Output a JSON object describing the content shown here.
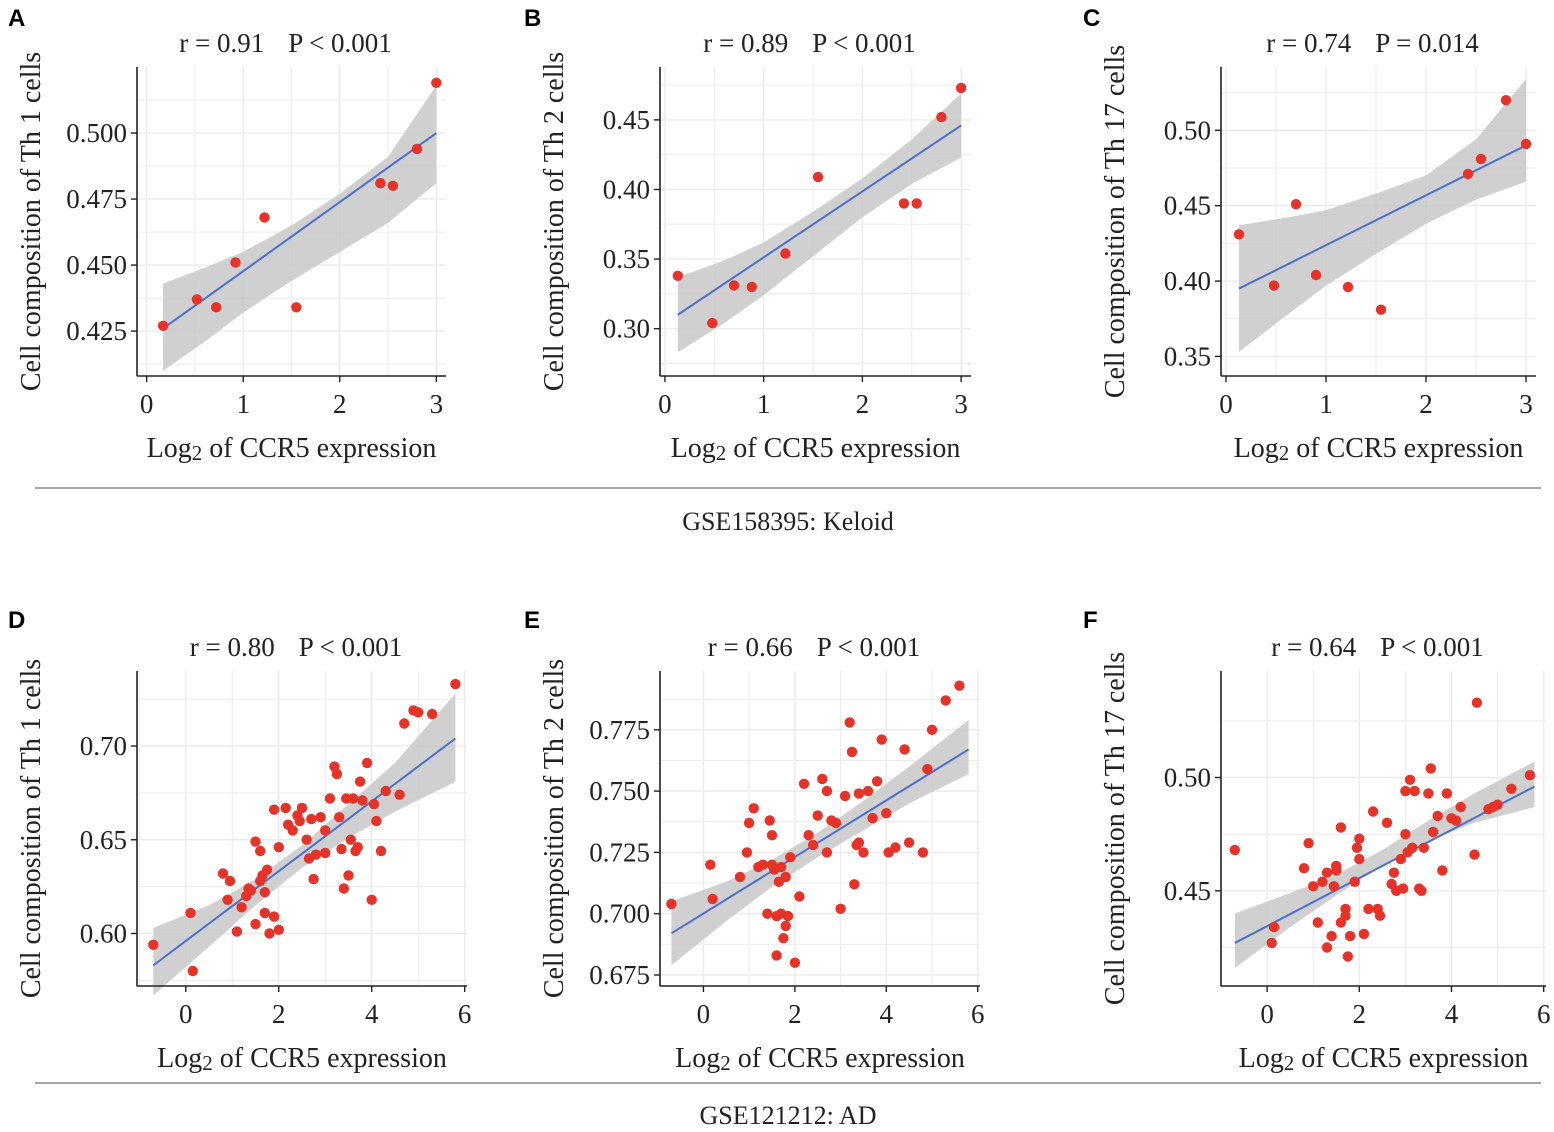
{
  "chart_data": [
    {
      "type": "scatter",
      "panel": "A",
      "annotation": {
        "r": "r = 0.91",
        "p": "P < 0.001"
      },
      "xlabel": "Log2 of CCR5 expression",
      "ylabel": "Cell composition of  Th 1 cells",
      "xlim": [
        -0.1,
        3.1
      ],
      "ylim": [
        0.408,
        0.525
      ],
      "xticks": [
        0,
        1,
        2,
        3
      ],
      "xtick_labels": [
        "0",
        "1",
        "2",
        "3"
      ],
      "yticks": [
        0.425,
        0.45,
        0.475,
        0.5
      ],
      "ytick_labels": [
        "0.425",
        "0.450",
        "0.475",
        "0.500"
      ],
      "points": {
        "x": [
          0.17,
          0.52,
          0.72,
          0.92,
          1.22,
          1.55,
          2.42,
          2.55,
          2.8,
          3.0
        ],
        "y": [
          0.427,
          0.437,
          0.434,
          0.451,
          0.468,
          0.434,
          0.481,
          0.48,
          0.494,
          0.519
        ]
      },
      "fit": {
        "x": [
          0.17,
          3.0
        ],
        "y": [
          0.426,
          0.5
        ]
      },
      "band": {
        "x": [
          0.17,
          0.6,
          1.0,
          1.5,
          2.0,
          2.5,
          3.0
        ],
        "lower": [
          0.41,
          0.421,
          0.432,
          0.444,
          0.455,
          0.466,
          0.481
        ],
        "upper": [
          0.443,
          0.449,
          0.455,
          0.465,
          0.477,
          0.491,
          0.518
        ]
      }
    },
    {
      "type": "scatter",
      "panel": "B",
      "annotation": {
        "r": "r = 0.89",
        "p": "P < 0.001"
      },
      "xlabel": "Log2 of CCR5 expression",
      "ylabel": "Cell composition of Th 2 cells",
      "xlim": [
        -0.05,
        3.1
      ],
      "ylim": [
        0.266,
        0.488
      ],
      "xticks": [
        0,
        1,
        2,
        3
      ],
      "xtick_labels": [
        "0",
        "1",
        "2",
        "3"
      ],
      "yticks": [
        0.3,
        0.35,
        0.4,
        0.45
      ],
      "ytick_labels": [
        "0.30",
        "0.35",
        "0.40",
        "0.45"
      ],
      "points": {
        "x": [
          0.13,
          0.48,
          0.7,
          0.88,
          1.22,
          1.55,
          2.42,
          2.55,
          2.8,
          3.0
        ],
        "y": [
          0.338,
          0.304,
          0.331,
          0.33,
          0.354,
          0.409,
          0.39,
          0.39,
          0.452,
          0.473
        ]
      },
      "fit": {
        "x": [
          0.13,
          3.0
        ],
        "y": [
          0.31,
          0.446
        ]
      },
      "band": {
        "x": [
          0.13,
          0.6,
          1.0,
          1.5,
          2.0,
          2.5,
          3.0
        ],
        "lower": [
          0.283,
          0.304,
          0.324,
          0.352,
          0.38,
          0.404,
          0.423
        ],
        "upper": [
          0.337,
          0.349,
          0.362,
          0.384,
          0.408,
          0.436,
          0.469
        ]
      }
    },
    {
      "type": "scatter",
      "panel": "C",
      "annotation": {
        "r": "r = 0.74",
        "p": "P = 0.014"
      },
      "xlabel": "Log2 of CCR5 expression",
      "ylabel": "Cell composition of  Th 17 cells",
      "xlim": [
        -0.05,
        3.1
      ],
      "ylim": [
        0.337,
        0.542
      ],
      "xticks": [
        0,
        1,
        2,
        3
      ],
      "xtick_labels": [
        "0",
        "1",
        "2",
        "3"
      ],
      "yticks": [
        0.35,
        0.4,
        0.45,
        0.5
      ],
      "ytick_labels": [
        "0.35",
        "0.40",
        "0.45",
        "0.50"
      ],
      "points": {
        "x": [
          0.13,
          0.48,
          0.7,
          0.9,
          1.22,
          1.55,
          2.42,
          2.55,
          2.8,
          3.0
        ],
        "y": [
          0.431,
          0.397,
          0.451,
          0.404,
          0.396,
          0.381,
          0.471,
          0.481,
          0.52,
          0.491
        ]
      },
      "fit": {
        "x": [
          0.13,
          3.0
        ],
        "y": [
          0.395,
          0.49
        ]
      },
      "band": {
        "x": [
          0.13,
          0.6,
          1.0,
          1.5,
          2.0,
          2.5,
          3.0
        ],
        "lower": [
          0.353,
          0.377,
          0.397,
          0.418,
          0.438,
          0.454,
          0.466
        ],
        "upper": [
          0.437,
          0.442,
          0.447,
          0.458,
          0.47,
          0.494,
          0.534
        ]
      }
    },
    {
      "type": "scatter",
      "panel": "D",
      "annotation": {
        "r": "r = 0.80",
        "p": "P < 0.001"
      },
      "xlabel": "Log2 of CCR5 expression",
      "ylabel": "Cell composition of  Th 1 cells",
      "xlim": [
        -1.05,
        6.05
      ],
      "ylim": [
        0.572,
        0.74
      ],
      "xticks": [
        0,
        2,
        4,
        6
      ],
      "xtick_labels": [
        "0",
        "2",
        "4",
        "6"
      ],
      "yticks": [
        0.6,
        0.65,
        0.7
      ],
      "ytick_labels": [
        "0.60",
        "0.65",
        "0.70"
      ],
      "points": {
        "x": [
          -0.7,
          0.1,
          0.15,
          0.8,
          0.9,
          0.95,
          1.1,
          1.2,
          1.35,
          1.4,
          1.5,
          1.5,
          1.6,
          1.6,
          1.65,
          1.7,
          1.7,
          1.75,
          1.8,
          1.9,
          1.9,
          2.0,
          2.0,
          2.15,
          2.3,
          2.4,
          2.45,
          2.5,
          2.6,
          2.65,
          2.7,
          2.75,
          2.8,
          2.9,
          3.0,
          3.1,
          3.2,
          3.25,
          3.3,
          3.35,
          3.4,
          3.5,
          3.55,
          3.6,
          3.65,
          3.7,
          3.75,
          3.8,
          3.9,
          4.0,
          4.05,
          4.1,
          4.2,
          4.3,
          4.6,
          4.7,
          4.9,
          5.0,
          5.3,
          5.8,
          3.0,
          2.2,
          1.3,
          3.45
        ],
        "y": [
          0.594,
          0.611,
          0.58,
          0.632,
          0.618,
          0.628,
          0.601,
          0.614,
          0.624,
          0.623,
          0.605,
          0.649,
          0.644,
          0.628,
          0.631,
          0.611,
          0.622,
          0.634,
          0.6,
          0.666,
          0.609,
          0.602,
          0.646,
          0.667,
          0.655,
          0.663,
          0.66,
          0.667,
          0.65,
          0.64,
          0.661,
          0.629,
          0.642,
          0.662,
          0.643,
          0.672,
          0.689,
          0.685,
          0.662,
          0.645,
          0.624,
          0.631,
          0.65,
          0.672,
          0.644,
          0.646,
          0.681,
          0.671,
          0.691,
          0.618,
          0.669,
          0.66,
          0.644,
          0.676,
          0.674,
          0.712,
          0.719,
          0.718,
          0.717,
          0.733,
          0.655,
          0.658,
          0.62,
          0.672
        ]
      },
      "fit": {
        "x": [
          -0.7,
          5.8
        ],
        "y": [
          0.583,
          0.704
        ]
      },
      "band": {
        "x": [
          -0.7,
          0.5,
          1.5,
          2.5,
          3.5,
          4.5,
          5.8
        ],
        "lower": [
          0.567,
          0.593,
          0.615,
          0.635,
          0.651,
          0.665,
          0.681
        ],
        "upper": [
          0.603,
          0.615,
          0.629,
          0.647,
          0.669,
          0.691,
          0.728
        ]
      }
    },
    {
      "type": "scatter",
      "panel": "E",
      "annotation": {
        "r": "r = 0.66",
        "p": "P < 0.001"
      },
      "xlabel": "Log2 of CCR5 expression",
      "ylabel": "Cell composition of Th 2 cells",
      "xlim": [
        -0.95,
        6.05
      ],
      "ylim": [
        0.6705,
        0.799
      ],
      "xticks": [
        0,
        2,
        4,
        6
      ],
      "xtick_labels": [
        "0",
        "2",
        "4",
        "6"
      ],
      "yticks": [
        0.675,
        0.7,
        0.725,
        0.75,
        0.775
      ],
      "ytick_labels": [
        "0.675",
        "0.700",
        "0.725",
        "0.750",
        "0.775"
      ],
      "points": {
        "x": [
          -0.7,
          0.15,
          0.2,
          0.8,
          0.95,
          1.0,
          1.1,
          1.2,
          1.3,
          1.4,
          1.45,
          1.5,
          1.5,
          1.55,
          1.6,
          1.65,
          1.7,
          1.7,
          1.75,
          1.8,
          1.85,
          1.9,
          2.0,
          2.1,
          2.2,
          2.3,
          2.4,
          2.5,
          2.6,
          2.7,
          2.8,
          2.9,
          3.0,
          3.1,
          3.2,
          3.25,
          3.3,
          3.35,
          3.4,
          3.5,
          3.6,
          3.7,
          3.8,
          3.9,
          4.0,
          4.05,
          4.2,
          4.4,
          4.5,
          4.8,
          4.9,
          5.0,
          5.3,
          5.6,
          1.6,
          2.7,
          3.4,
          1.8
        ],
        "y": [
          0.704,
          0.72,
          0.706,
          0.715,
          0.725,
          0.737,
          0.743,
          0.719,
          0.72,
          0.7,
          0.738,
          0.732,
          0.72,
          0.718,
          0.699,
          0.713,
          0.7,
          0.719,
          0.69,
          0.695,
          0.699,
          0.723,
          0.68,
          0.707,
          0.753,
          0.732,
          0.728,
          0.74,
          0.755,
          0.725,
          0.738,
          0.737,
          0.702,
          0.748,
          0.778,
          0.766,
          0.712,
          0.728,
          0.729,
          0.725,
          0.75,
          0.739,
          0.754,
          0.771,
          0.741,
          0.725,
          0.727,
          0.767,
          0.729,
          0.725,
          0.759,
          0.775,
          0.787,
          0.793,
          0.683,
          0.75,
          0.749,
          0.715
        ]
      },
      "fit": {
        "x": [
          -0.7,
          5.8
        ],
        "y": [
          0.692,
          0.767
        ]
      },
      "band": {
        "x": [
          -0.7,
          0.5,
          1.5,
          2.5,
          3.5,
          4.5,
          5.8
        ],
        "lower": [
          0.679,
          0.697,
          0.711,
          0.723,
          0.734,
          0.745,
          0.757
        ],
        "upper": [
          0.705,
          0.713,
          0.722,
          0.733,
          0.746,
          0.76,
          0.779
        ]
      }
    },
    {
      "type": "scatter",
      "panel": "F",
      "annotation": {
        "r": "r = 0.64",
        "p": "P < 0.001"
      },
      "xlabel": "Log2 of CCR5 expression",
      "ylabel": "Cell composition of  Th 17 cells",
      "xlim": [
        -1.0,
        6.05
      ],
      "ylim": [
        0.408,
        0.547
      ],
      "xticks": [
        0,
        2,
        4,
        6
      ],
      "xtick_labels": [
        "0",
        "2",
        "4",
        "6"
      ],
      "yticks": [
        0.45,
        0.5
      ],
      "ytick_labels": [
        "0.45",
        "0.50"
      ],
      "points": {
        "x": [
          -0.7,
          0.1,
          0.15,
          0.8,
          0.9,
          1.0,
          1.1,
          1.2,
          1.3,
          1.4,
          1.45,
          1.5,
          1.5,
          1.6,
          1.6,
          1.7,
          1.7,
          1.75,
          1.8,
          1.9,
          1.95,
          2.0,
          2.0,
          2.1,
          2.3,
          2.4,
          2.45,
          2.6,
          2.7,
          2.75,
          2.8,
          2.9,
          2.95,
          3.0,
          3.05,
          3.1,
          3.15,
          3.2,
          3.3,
          3.35,
          3.4,
          3.5,
          3.55,
          3.6,
          3.7,
          3.8,
          3.9,
          4.0,
          4.1,
          4.2,
          4.5,
          4.55,
          4.8,
          4.9,
          5.0,
          5.3,
          5.7,
          1.3,
          3.0,
          2.2
        ],
        "y": [
          0.468,
          0.427,
          0.434,
          0.46,
          0.471,
          0.452,
          0.436,
          0.454,
          0.458,
          0.43,
          0.452,
          0.459,
          0.461,
          0.436,
          0.478,
          0.442,
          0.439,
          0.421,
          0.43,
          0.454,
          0.469,
          0.473,
          0.464,
          0.431,
          0.485,
          0.442,
          0.439,
          0.48,
          0.453,
          0.458,
          0.45,
          0.464,
          0.451,
          0.494,
          0.467,
          0.499,
          0.469,
          0.494,
          0.451,
          0.45,
          0.469,
          0.493,
          0.504,
          0.476,
          0.483,
          0.459,
          0.493,
          0.482,
          0.481,
          0.487,
          0.466,
          0.533,
          0.486,
          0.487,
          0.488,
          0.495,
          0.501,
          0.425,
          0.475,
          0.442
        ]
      },
      "fit": {
        "x": [
          -0.7,
          5.8
        ],
        "y": [
          0.427,
          0.496
        ]
      },
      "band": {
        "x": [
          -0.7,
          0.5,
          1.5,
          2.5,
          3.5,
          4.5,
          5.8
        ],
        "lower": [
          0.416,
          0.434,
          0.448,
          0.461,
          0.472,
          0.48,
          0.487
        ],
        "upper": [
          0.44,
          0.449,
          0.457,
          0.468,
          0.481,
          0.493,
          0.507
        ]
      }
    }
  ],
  "captions": {
    "top": "GSE158395: Keloid",
    "bottom": "GSE121212: AD"
  },
  "colors": {
    "point": "#e53329",
    "line": "#4a6fd0",
    "band": "#c8c8c8",
    "grid": "#ebebeb",
    "axis": "#222222",
    "separator": "#8a8a8a"
  }
}
